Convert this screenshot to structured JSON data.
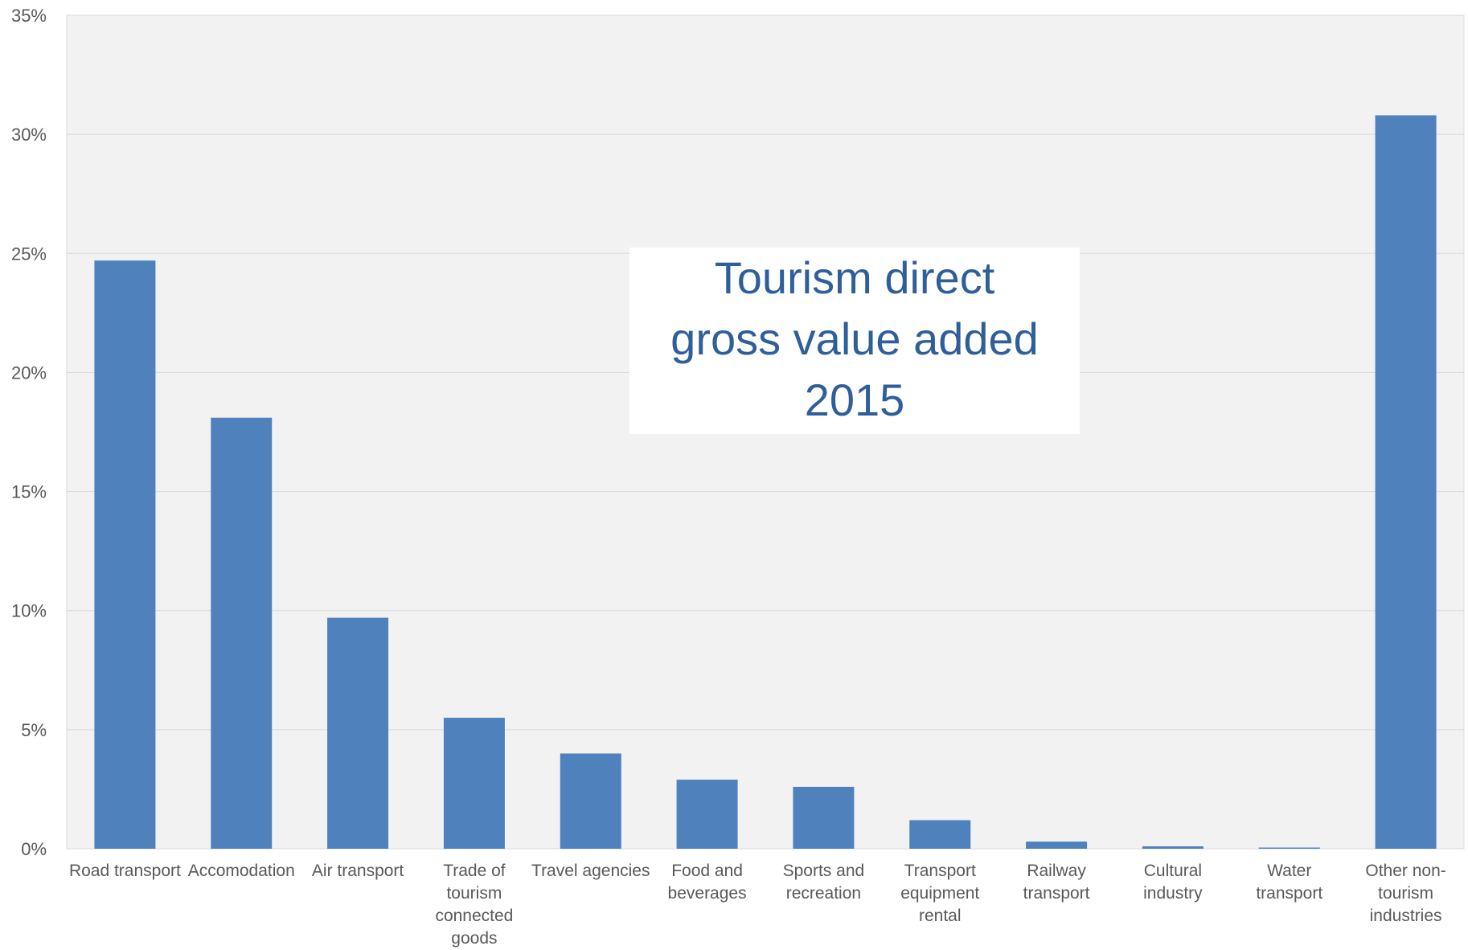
{
  "chart_data": {
    "type": "bar",
    "title": "Tourism direct gross value added 2015",
    "title_lines": [
      "Tourism direct",
      "gross value added",
      "2015"
    ],
    "categories": [
      "Road transport",
      "Accomodation",
      "Air transport",
      "Trade of tourism connected goods",
      "Travel agencies",
      "Food and beverages",
      "Sports and recreation",
      "Transport equipment rental",
      "Railway transport",
      "Cultural industry",
      "Water transport",
      "Other non-tourism industries"
    ],
    "category_lines": [
      [
        "Road transport"
      ],
      [
        "Accomodation"
      ],
      [
        "Air transport"
      ],
      [
        "Trade of",
        "tourism",
        "connected",
        "goods"
      ],
      [
        "Travel agencies"
      ],
      [
        "Food and",
        "beverages"
      ],
      [
        "Sports and",
        "recreation"
      ],
      [
        "Transport",
        "equipment",
        "rental"
      ],
      [
        "Railway",
        "transport"
      ],
      [
        "Cultural",
        "industry"
      ],
      [
        "Water",
        "transport"
      ],
      [
        "Other non-",
        "tourism",
        "industries"
      ]
    ],
    "values": [
      24.7,
      18.1,
      9.7,
      5.5,
      4.0,
      2.9,
      2.6,
      1.2,
      0.3,
      0.1,
      0.05,
      30.8
    ],
    "ylim": [
      0,
      35
    ],
    "yticks": [
      0,
      5,
      10,
      15,
      20,
      25,
      30,
      35
    ],
    "ytick_labels": [
      "0%",
      "5%",
      "10%",
      "15%",
      "20%",
      "25%",
      "30%",
      "35%"
    ],
    "xlabel": "",
    "ylabel": "",
    "grid": true,
    "legend": "none",
    "colors": {
      "bar": "#4f81bd",
      "plot_bg": "#f2f2f2",
      "grid": "#d9d9d9",
      "title": "#2f5f99",
      "tick_text": "#595959"
    }
  }
}
